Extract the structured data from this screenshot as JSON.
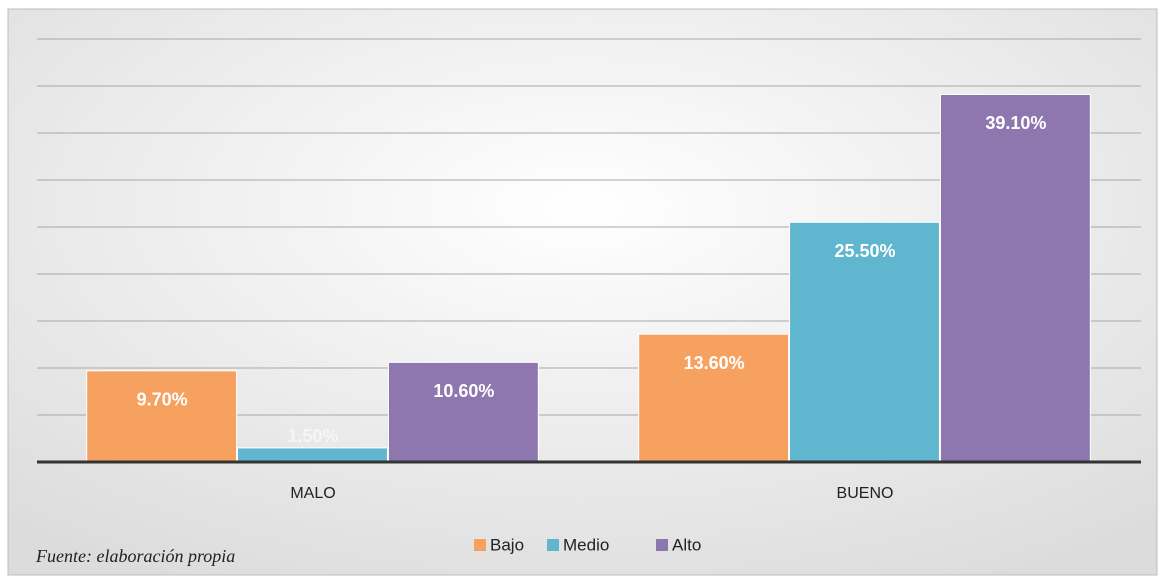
{
  "chart_data": {
    "type": "bar",
    "categories": [
      "MALO",
      "BUENO"
    ],
    "series": [
      {
        "name": "Bajo",
        "color": "#f6a15f",
        "values": [
          9.7,
          13.6
        ],
        "value_labels": [
          "9.70%",
          "13.60%"
        ]
      },
      {
        "name": "Medio",
        "color": "#5fb6ce",
        "values": [
          1.5,
          25.5
        ],
        "value_labels": [
          "1.50%",
          "25.50%"
        ]
      },
      {
        "name": "Alto",
        "color": "#8e77ae",
        "values": [
          10.6,
          39.1
        ],
        "value_labels": [
          "10.60%",
          "39.10%"
        ]
      }
    ],
    "ylim": [
      0,
      45
    ],
    "yticks": [
      0,
      5,
      10,
      15,
      20,
      25,
      30,
      35,
      40,
      45
    ],
    "grid": true,
    "legend": "bottom",
    "source": "Fuente: elaboración propia"
  }
}
